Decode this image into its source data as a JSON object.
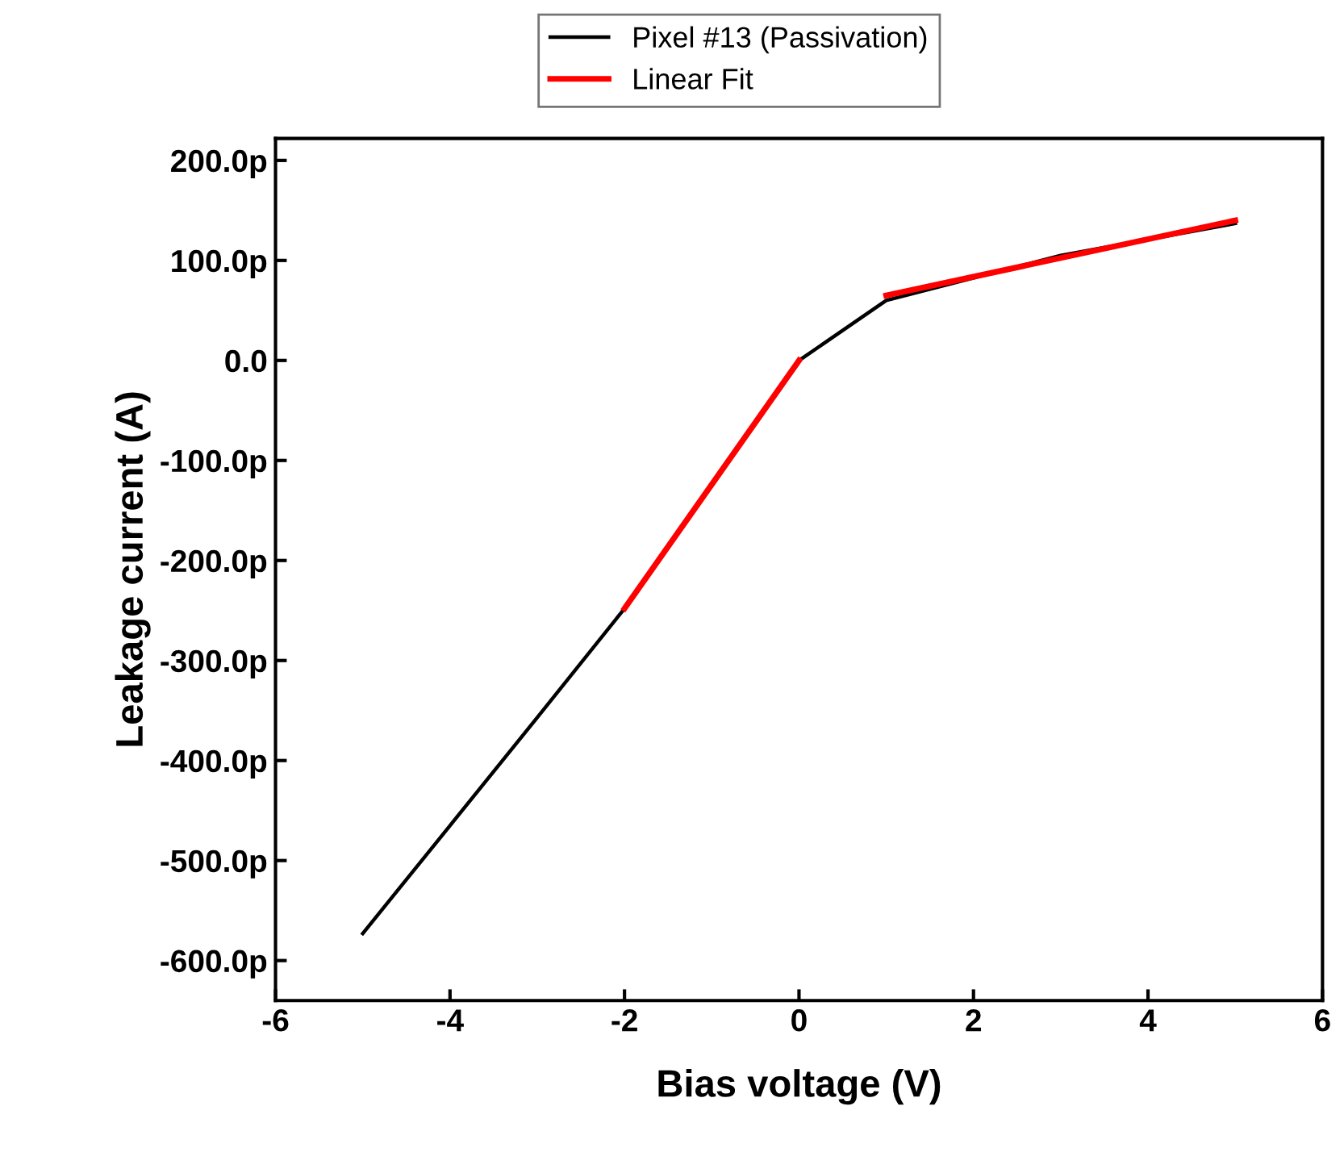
{
  "chart_data": {
    "type": "line",
    "xlabel": "Bias voltage (V)",
    "ylabel": "Leakage current (A)",
    "xlim": [
      -6,
      6
    ],
    "xticks": [
      -6,
      -4,
      -2,
      0,
      2,
      4,
      6
    ],
    "ylim": [
      -640,
      222
    ],
    "yticks": [
      {
        "value": 200,
        "label": "200.0p"
      },
      {
        "value": 100,
        "label": "100.0p"
      },
      {
        "value": 0,
        "label": "0.0"
      },
      {
        "value": -100,
        "label": "-100.0p"
      },
      {
        "value": -200,
        "label": "-200.0p"
      },
      {
        "value": -300,
        "label": "-300.0p"
      },
      {
        "value": -400,
        "label": "-400.0p"
      },
      {
        "value": -500,
        "label": "-500.0p"
      },
      {
        "value": -600,
        "label": "-600.0p"
      }
    ],
    "series": [
      {
        "name": "Pixel #13 (Passivation)",
        "color": "#000000",
        "x": [
          -5,
          -4,
          -3,
          -2,
          0,
          1,
          3,
          5
        ],
        "values": [
          -573,
          -465,
          -357,
          -248,
          0,
          60,
          105,
          137
        ]
      },
      {
        "name": "Linear Fit",
        "color": "#ff0000",
        "x": [
          -2,
          0,
          0.5,
          1,
          5
        ],
        "values": [
          -248,
          0,
          null,
          65,
          140
        ]
      }
    ],
    "legend": "top",
    "grid": false,
    "marker": "none",
    "line_style": "solid"
  }
}
